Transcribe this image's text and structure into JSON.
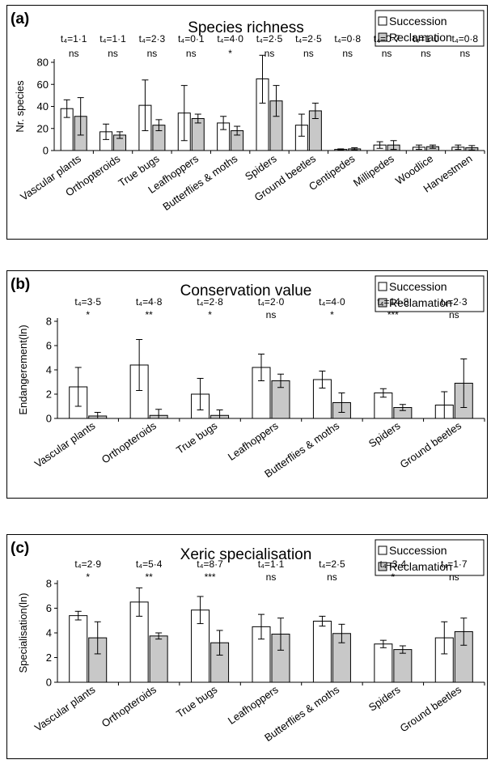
{
  "chart_data": [
    {
      "type": "bar",
      "panel_label": "(a)",
      "title": "Species richness",
      "ylabel": "Nr. species",
      "ylim": [
        0,
        80
      ],
      "yticks": [
        0,
        20,
        40,
        60,
        80
      ],
      "legend": {
        "placement": "top-right",
        "entries": [
          "Succession",
          "Reclamation"
        ]
      },
      "categories": [
        "Vascular plants",
        "Orthopteroids",
        "True bugs",
        "Leafhoppers",
        "Butterflies & moths",
        "Spiders",
        "Ground beetles",
        "Centipedes",
        "Millipedes",
        "Woodlice",
        "Harvestmen"
      ],
      "series": [
        {
          "name": "Succession",
          "values": [
            38,
            17,
            41,
            34,
            25,
            65,
            23,
            1,
            5,
            3,
            3
          ],
          "error": [
            8,
            7,
            23,
            25,
            6,
            22,
            10,
            0.5,
            3,
            2,
            2
          ]
        },
        {
          "name": "Reclamation",
          "values": [
            31,
            14,
            23,
            29,
            18,
            45,
            36,
            1.5,
            5,
            3.5,
            2.5
          ],
          "error": [
            17,
            3,
            5,
            4,
            4,
            14,
            7,
            1,
            4,
            1.5,
            2
          ]
        }
      ],
      "tstats": [
        "t₄=1·1",
        "t₄=1·1",
        "t₄=2·3",
        "t₄=0·1",
        "t₄=4·0",
        "t₄=2·5",
        "t₄=2·5",
        "t₄=0·8",
        "t₄=0·7",
        "t₄=1·0",
        "t₄=0·8"
      ],
      "significance": [
        "ns",
        "ns",
        "ns",
        "ns",
        "*",
        "ns",
        "ns",
        "ns",
        "ns",
        "ns",
        "ns"
      ],
      "colors": {
        "succession": "#ffffff",
        "reclamation": "#c8c8c8",
        "stroke": "#000000"
      }
    },
    {
      "type": "bar",
      "panel_label": "(b)",
      "title": "Conservation value",
      "ylabel": "Endangerement(ln)",
      "ylim": [
        0,
        8
      ],
      "yticks": [
        0,
        2,
        4,
        6,
        8
      ],
      "legend": {
        "placement": "top-right",
        "entries": [
          "Succession",
          "Reclamation"
        ]
      },
      "categories": [
        "Vascular plants",
        "Orthopteroids",
        "True bugs",
        "Leafhoppers",
        "Butterflies & moths",
        "Spiders",
        "Ground beetles"
      ],
      "series": [
        {
          "name": "Succession",
          "values": [
            2.6,
            4.4,
            2.0,
            4.2,
            3.2,
            2.1,
            1.1
          ],
          "error": [
            1.6,
            2.1,
            1.3,
            1.1,
            0.7,
            0.35,
            1.1
          ]
        },
        {
          "name": "Reclamation",
          "values": [
            0.2,
            0.25,
            0.25,
            3.1,
            1.3,
            0.9,
            2.9
          ],
          "error": [
            0.3,
            0.5,
            0.45,
            0.55,
            0.8,
            0.25,
            2.0
          ]
        }
      ],
      "tstats": [
        "t₄=3·5",
        "t₄=4·8",
        "t₄=2·8",
        "t₄=2·0",
        "t₄=4·0",
        "t₄=14·8",
        "t₄=2·3"
      ],
      "significance": [
        "*",
        "**",
        "*",
        "ns",
        "*",
        "***",
        "ns"
      ],
      "colors": {
        "succession": "#ffffff",
        "reclamation": "#c8c8c8",
        "stroke": "#000000"
      }
    },
    {
      "type": "bar",
      "panel_label": "(c)",
      "title": "Xeric specialisation",
      "ylabel": "Specialisation(ln)",
      "ylim": [
        0,
        8
      ],
      "yticks": [
        0,
        2,
        4,
        6,
        8
      ],
      "legend": {
        "placement": "top-right",
        "entries": [
          "Succession",
          "Reclamation"
        ]
      },
      "categories": [
        "Vascular plants",
        "Orthopteroids",
        "True bugs",
        "Leafhoppers",
        "Butterflies & moths",
        "Spiders",
        "Ground beetles"
      ],
      "series": [
        {
          "name": "Succession",
          "values": [
            5.4,
            6.5,
            5.85,
            4.5,
            4.95,
            3.1,
            3.6
          ],
          "error": [
            0.35,
            1.15,
            1.1,
            1.0,
            0.4,
            0.3,
            1.3
          ]
        },
        {
          "name": "Reclamation",
          "values": [
            3.6,
            3.75,
            3.2,
            3.9,
            3.95,
            2.65,
            4.1
          ],
          "error": [
            1.3,
            0.25,
            1.0,
            1.3,
            0.75,
            0.3,
            1.1
          ]
        }
      ],
      "tstats": [
        "t₄=2·9",
        "t₄=5·4",
        "t₄=8·7",
        "t₄=1·1",
        "t₄=2·5",
        "t₄=3·4",
        "t₄=1·7"
      ],
      "significance": [
        "*",
        "**",
        "***",
        "ns",
        "ns",
        "*",
        "ns"
      ],
      "colors": {
        "succession": "#ffffff",
        "reclamation": "#c8c8c8",
        "stroke": "#000000"
      }
    }
  ]
}
